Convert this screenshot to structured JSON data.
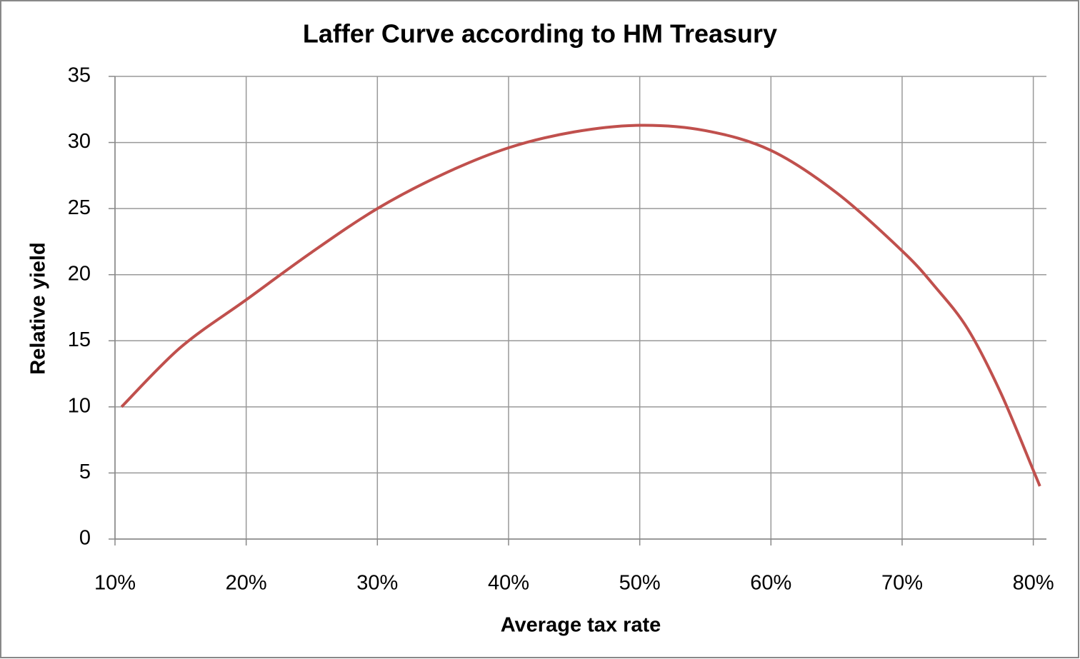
{
  "chart_data": {
    "type": "line",
    "title": "Laffer Curve according to HM Treasury",
    "x_label": "Average tax rate",
    "y_label": "Relative yield",
    "x": [
      10.5,
      15,
      20,
      25,
      30,
      35,
      40,
      45,
      50,
      55,
      60,
      65,
      70,
      72.5,
      75,
      77.5,
      80,
      80.5
    ],
    "series": [
      {
        "color": "#c0504d",
        "values": [
          10,
          14.5,
          18.1,
          21.7,
          25,
          27.6,
          29.6,
          30.8,
          31.3,
          30.9,
          29.4,
          26.2,
          21.8,
          19.1,
          15.9,
          11.1,
          5.2,
          4
        ]
      }
    ],
    "xlim": [
      10,
      81
    ],
    "xticks": [
      {
        "value": 10,
        "label": "10%"
      },
      {
        "value": 20,
        "label": "20%"
      },
      {
        "value": 30,
        "label": "30%"
      },
      {
        "value": 40,
        "label": "40%"
      },
      {
        "value": 50,
        "label": "50%"
      },
      {
        "value": 60,
        "label": "60%"
      },
      {
        "value": 70,
        "label": "70%"
      },
      {
        "value": 80,
        "label": "80%"
      }
    ],
    "ylim": [
      0,
      35
    ],
    "yticks": [
      0,
      5,
      10,
      15,
      20,
      25,
      30,
      35
    ],
    "grid": true
  }
}
